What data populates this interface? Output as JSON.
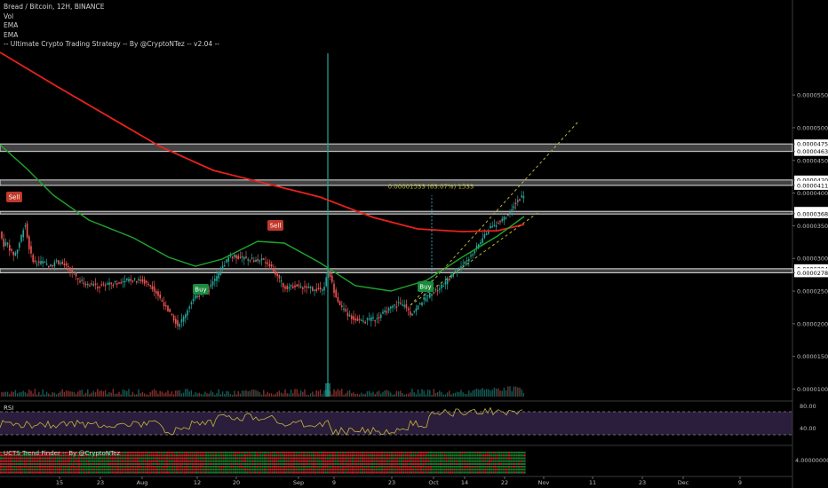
{
  "legend": {
    "title": "Bread / Bitcoin, 12H, BINANCE",
    "items": [
      "Vol",
      "EMA",
      "EMA",
      "-- Ultimate Crypto Trading Strategy -- By @CryptoNTez -- v2.04 --"
    ]
  },
  "rsi_label": "RSI",
  "trend_label": "UCTS Trend Finder -- By @CryptoNTez",
  "colors": {
    "background": "#000000",
    "up": "#26a69a",
    "down": "#ef5350",
    "ema_slow": "#e8221c",
    "ema_fast": "#1fa62c",
    "rsi": "#c9b43a",
    "rsi_band": "#2a1e3c",
    "zone": "#7a7a7a",
    "measure": "#b6b43a",
    "axis_text": "#bdbdbd"
  },
  "chart_data": {
    "type": "candlestick",
    "y_ticks": [
      "0.00005500",
      "0.00005000",
      "0.00004752",
      "0.00004637",
      "0.00004500",
      "0.00004200",
      "0.00004117",
      "0.00004000",
      "0.00003720",
      "0.00003684",
      "0.00003500",
      "0.00003000",
      "0.00002842",
      "0.00002780",
      "0.00002500",
      "0.00002000",
      "0.00001500",
      "0.00001000"
    ],
    "x_ticks": [
      "15",
      "23",
      "Aug",
      "12",
      "20",
      "Sep",
      "9",
      "23",
      "Oct",
      "14",
      "22",
      "Nov",
      "11",
      "23",
      "Dec",
      "9"
    ],
    "zones": [
      {
        "top": 4.752e-05,
        "bottom": 4.637e-05
      },
      {
        "top": 4.2e-05,
        "bottom": 4.117e-05
      },
      {
        "top": 3.72e-05,
        "bottom": 3.684e-05
      },
      {
        "top": 2.842e-05,
        "bottom": 2.78e-05
      }
    ],
    "signals": [
      {
        "label": "Sell",
        "type": "sell"
      },
      {
        "label": "Sell",
        "type": "sell"
      },
      {
        "label": "Buy",
        "type": "buy"
      },
      {
        "label": "Buy",
        "type": "buy"
      }
    ],
    "measurement": {
      "label": "0.00001533 (63.07%) 1533",
      "from": 2.43e-05,
      "to": 3.963e-05
    },
    "rsi": {
      "levels": [
        70,
        30
      ],
      "ticks": [
        "80.00",
        "40.00"
      ]
    },
    "trend_finder": {
      "ticks": [
        "4.00000000"
      ]
    }
  }
}
